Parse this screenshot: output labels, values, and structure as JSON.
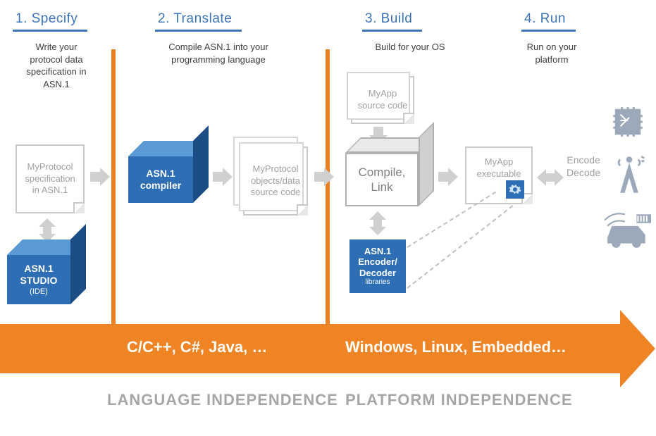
{
  "colors": {
    "blue_title": "#3b74b9",
    "orange": "#ef8424",
    "cube_front": "#2d6eb4",
    "cube_top": "#5a9bd5",
    "cube_side": "#1b4d84",
    "grey_text": "#a0a0a0",
    "grey_border": "#c9c9c9",
    "arrow_grey": "#cfcfcf",
    "footer_grey": "#a6a6a6"
  },
  "stages": {
    "s1": {
      "title": "1. Specify",
      "sub": "Write your\nprotocol data\nspecification in\nASN.1"
    },
    "s2": {
      "title": "2. Translate",
      "sub": "Compile ASN.1 into your\nprogramming language"
    },
    "s3": {
      "title": "3. Build",
      "sub": "Build for your OS"
    },
    "s4": {
      "title": "4. Run",
      "sub": "Run on your\nplatform"
    }
  },
  "docs": {
    "protocol_spec": "MyProtocol specification in ASN.1",
    "protocol_objs": "MyProtocol objects/data source code",
    "myapp_src": "MyApp\nsource code",
    "myapp_exec": "MyApp executable"
  },
  "cubes": {
    "studio": {
      "line1": "ASN.1",
      "line2": "STUDIO",
      "line3": "(IDE)"
    },
    "compiler": {
      "line1": "ASN.1",
      "line2": "compiler"
    },
    "compile_link": "Compile,\nLink",
    "encoder": {
      "line1": "ASN.1",
      "line2": "Encoder/",
      "line3": "Decoder",
      "line4": "libraries"
    }
  },
  "encdec": "Encode\nDecode",
  "arrow_labels": {
    "lang": "C/C++, C#, Java, …",
    "plat": "Windows, Linux, Embedded…"
  },
  "footer": {
    "lang": "LANGUAGE INDEPENDENCE",
    "plat": "PLATFORM INDEPENDENCE"
  }
}
